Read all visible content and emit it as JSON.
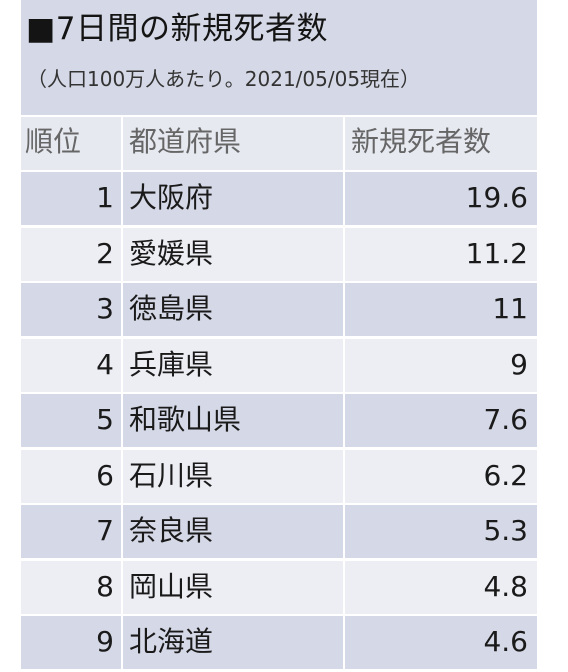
{
  "header": {
    "title": "■7日間の新規死者数",
    "subtitle": "（人口100万人あたり。2021/05/05現在）"
  },
  "table": {
    "columns": [
      "順位",
      "都道府県",
      "新規死者数"
    ],
    "rows": [
      {
        "rank": "1",
        "prefecture": "大阪府",
        "value": "19.6"
      },
      {
        "rank": "2",
        "prefecture": "愛媛県",
        "value": "11.2"
      },
      {
        "rank": "3",
        "prefecture": "徳島県",
        "value": "11"
      },
      {
        "rank": "4",
        "prefecture": "兵庫県",
        "value": "9"
      },
      {
        "rank": "5",
        "prefecture": "和歌山県",
        "value": "7.6"
      },
      {
        "rank": "6",
        "prefecture": "石川県",
        "value": "6.2"
      },
      {
        "rank": "7",
        "prefecture": "奈良県",
        "value": "5.3"
      },
      {
        "rank": "8",
        "prefecture": "岡山県",
        "value": "4.8"
      },
      {
        "rank": "9",
        "prefecture": "北海道",
        "value": "4.6"
      }
    ]
  },
  "colors": {
    "header_bg": "#d5d8e6",
    "band_row": "#d5d8e6",
    "light_row": "#edeef4"
  },
  "chart_data": {
    "type": "table",
    "title": "■7日間の新規死者数",
    "subtitle": "（人口100万人あたり。2021/05/05現在）",
    "columns": [
      "順位",
      "都道府県",
      "新規死者数"
    ],
    "categories": [
      "大阪府",
      "愛媛県",
      "徳島県",
      "兵庫県",
      "和歌山県",
      "石川県",
      "奈良県",
      "岡山県",
      "北海道"
    ],
    "values": [
      19.6,
      11.2,
      11,
      9,
      7.6,
      6.2,
      5.3,
      4.8,
      4.6
    ]
  }
}
